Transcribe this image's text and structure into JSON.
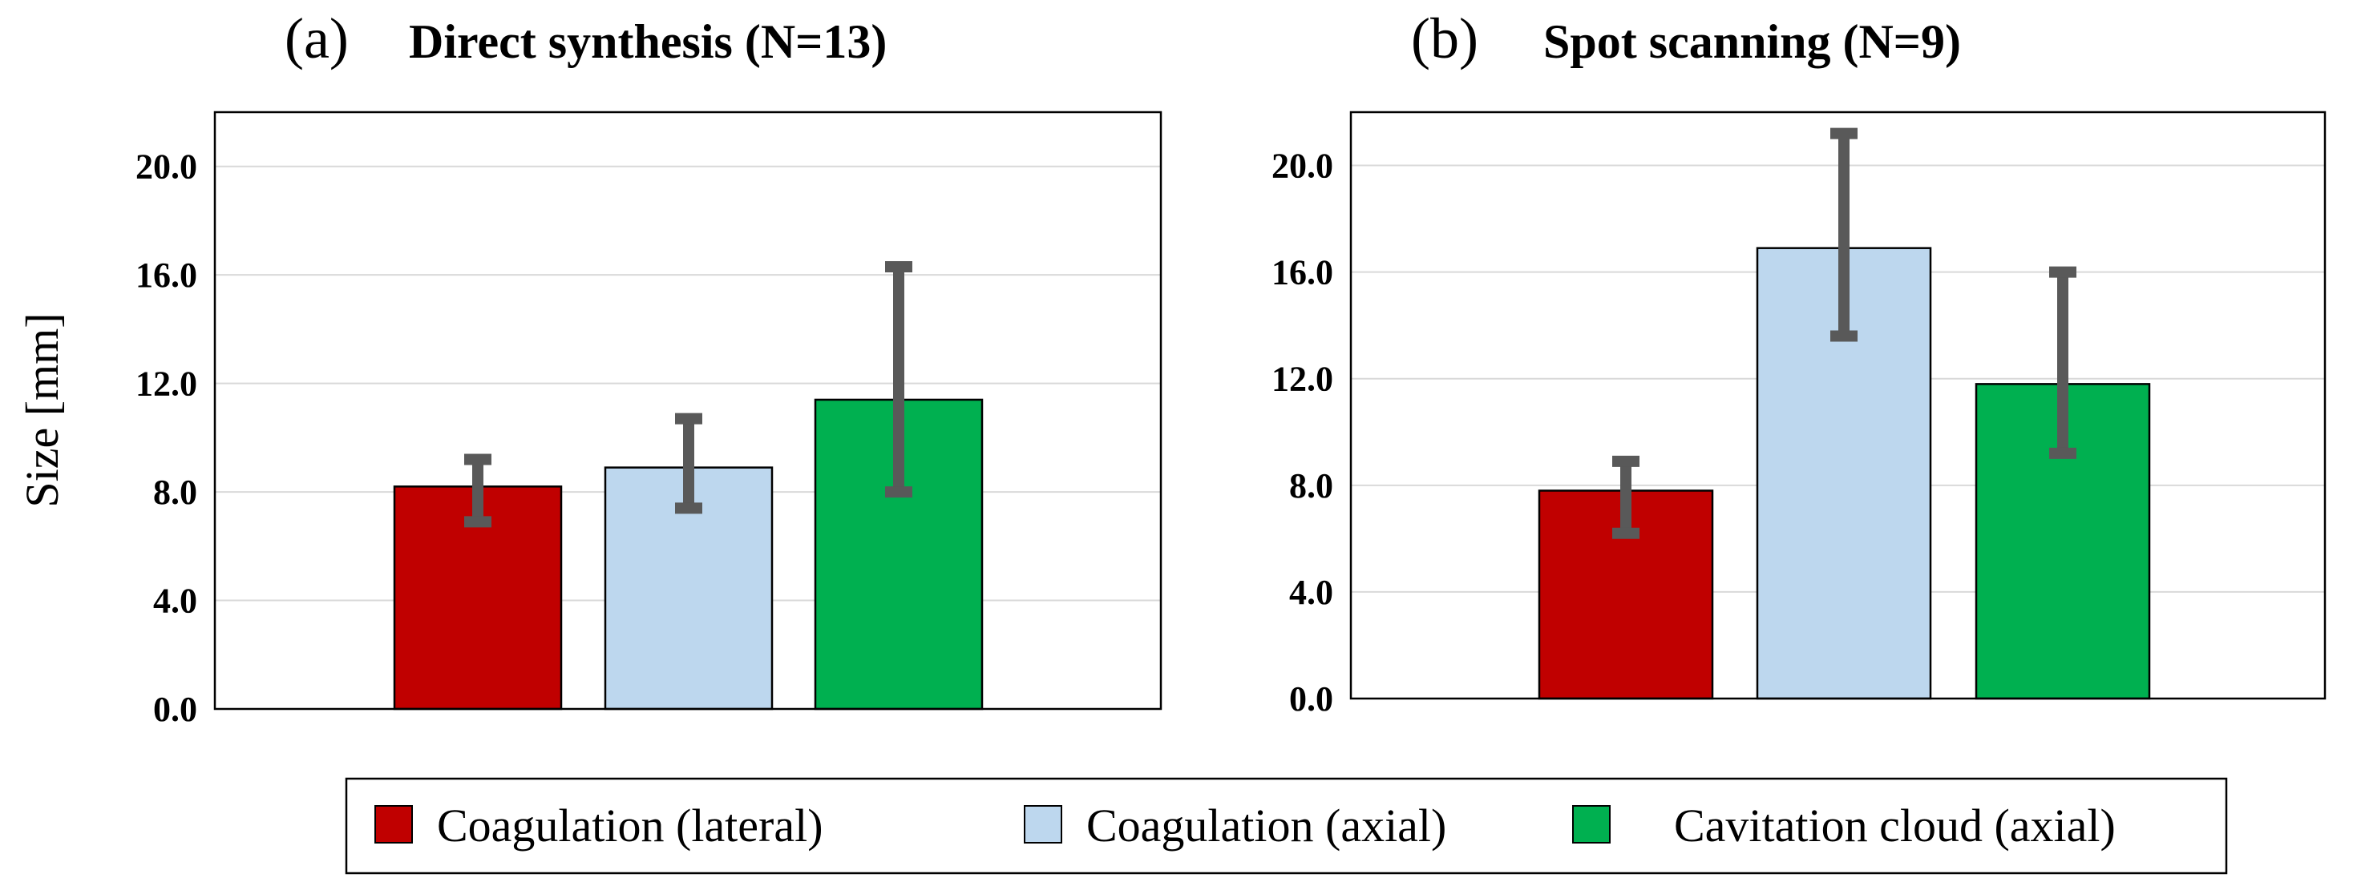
{
  "legend": {
    "items": [
      {
        "label": "Coagulation (lateral)",
        "color": "#c00000"
      },
      {
        "label": "Coagulation (axial)",
        "color": "#bdd7ee"
      },
      {
        "label": "Cavitation cloud (axial)",
        "color": "#00b050"
      }
    ]
  },
  "error_bar_color": "#595959",
  "chart_data": [
    {
      "type": "bar",
      "panel": "(a)",
      "title": "Direct synthesis (N=13)",
      "ylabel": "Size [mm]",
      "ylim": [
        0,
        22
      ],
      "yticks": [
        "0.0",
        "4.0",
        "8.0",
        "12.0",
        "16.0",
        "20.0"
      ],
      "grid": true,
      "series": [
        {
          "name": "Coagulation (lateral)",
          "value": 8.2,
          "error_low": 6.9,
          "error_high": 9.2,
          "color": "#c00000"
        },
        {
          "name": "Coagulation (axial)",
          "value": 8.9,
          "error_low": 7.4,
          "error_high": 10.7,
          "color": "#bdd7ee"
        },
        {
          "name": "Cavitation cloud (axial)",
          "value": 11.4,
          "error_low": 8.0,
          "error_high": 16.3,
          "color": "#00b050"
        }
      ]
    },
    {
      "type": "bar",
      "panel": "(b)",
      "title": "Spot scanning (N=9)",
      "ylabel": "",
      "ylim": [
        0,
        22
      ],
      "yticks": [
        "0.0",
        "4.0",
        "8.0",
        "12.0",
        "16.0",
        "20.0"
      ],
      "grid": true,
      "series": [
        {
          "name": "Coagulation (lateral)",
          "value": 7.8,
          "error_low": 6.2,
          "error_high": 8.9,
          "color": "#c00000"
        },
        {
          "name": "Coagulation (axial)",
          "value": 16.9,
          "error_low": 13.6,
          "error_high": 21.2,
          "color": "#bdd7ee"
        },
        {
          "name": "Cavitation cloud (axial)",
          "value": 11.8,
          "error_low": 9.2,
          "error_high": 16.0,
          "color": "#00b050"
        }
      ]
    }
  ]
}
